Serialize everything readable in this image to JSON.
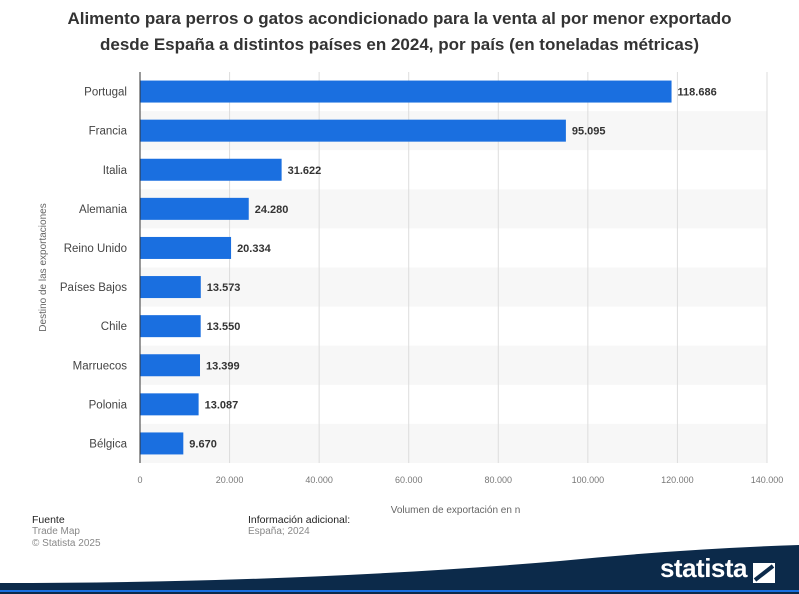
{
  "title_line1": "Alimento para perros o gatos acondicionado para la venta al por menor exportado",
  "title_line2": "desde España a distintos países en 2024, por país (en toneladas métricas)",
  "chart_data": {
    "type": "bar",
    "orientation": "horizontal",
    "categories": [
      "Portugal",
      "Francia",
      "Italia",
      "Alemania",
      "Reino Unido",
      "Países Bajos",
      "Chile",
      "Marruecos",
      "Polonia",
      "Bélgica"
    ],
    "values": [
      118686,
      95095,
      31622,
      24280,
      20334,
      13573,
      13550,
      13399,
      13087,
      9670
    ],
    "value_labels": [
      "118.686",
      "95.095",
      "31.622",
      "24.280",
      "20.334",
      "13.573",
      "13.550",
      "13.399",
      "13.087",
      "9.670"
    ],
    "xlabel": "Volumen de exportación en n",
    "ylabel": "Destino de las exportaciones",
    "xlim": [
      0,
      140000
    ],
    "xticks": [
      0,
      20000,
      40000,
      60000,
      80000,
      100000,
      120000,
      140000
    ],
    "xtick_labels": [
      "0",
      "20.000",
      "40.000",
      "60.000",
      "80.000",
      "100.000",
      "120.000",
      "140.000"
    ],
    "grid": true,
    "bar_color": "#1a6fe0"
  },
  "footer": {
    "source_heading": "Fuente",
    "source_lines": [
      "Trade Map",
      "© Statista 2025"
    ],
    "info_heading": "Información adicional:",
    "info_lines": [
      "España; 2024"
    ]
  },
  "brand": {
    "name": "statista",
    "band_color": "#0c2a4a"
  }
}
